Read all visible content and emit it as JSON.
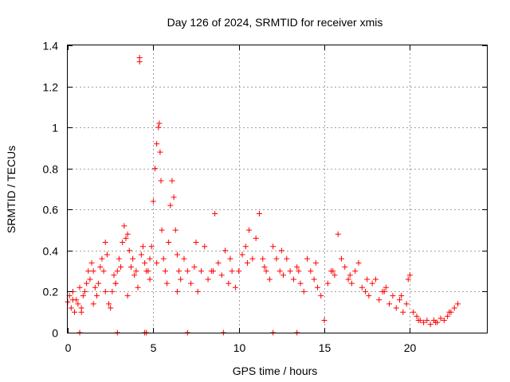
{
  "chart_data": {
    "type": "scatter",
    "title": "Day 126 of 2024, SRMTID for receiver xmis",
    "xlabel": "GPS time / hours",
    "ylabel": "SRMTID / TECUs",
    "xlim": [
      0,
      24.5
    ],
    "ylim": [
      0,
      1.4
    ],
    "x_ticks": [
      0,
      5,
      10,
      15,
      20
    ],
    "y_ticks": [
      0,
      0.2,
      0.4,
      0.6,
      0.8,
      1,
      1.2,
      1.4
    ],
    "x_tick_labels": [
      "0",
      "5",
      "10",
      "15",
      "20"
    ],
    "y_tick_labels": [
      "0",
      "0.2",
      "0.4",
      "0.6",
      "0.8",
      "1",
      "1.2",
      "1.4"
    ],
    "grid": true,
    "marker": "plus",
    "color": "#ff0000",
    "series": [
      {
        "name": "SRMTID",
        "x": [
          0.0,
          0.1,
          0.2,
          0.3,
          0.4,
          0.5,
          0.6,
          0.7,
          0.8,
          0.9,
          1.0,
          1.1,
          1.2,
          1.3,
          1.4,
          1.5,
          1.6,
          1.7,
          1.8,
          1.9,
          2.0,
          2.1,
          2.2,
          2.3,
          2.4,
          2.5,
          2.6,
          2.7,
          2.8,
          2.9,
          3.0,
          3.1,
          3.2,
          3.3,
          3.4,
          3.5,
          3.6,
          3.7,
          3.8,
          3.9,
          4.0,
          4.1,
          4.2,
          4.2,
          4.3,
          4.4,
          4.5,
          4.6,
          4.7,
          4.8,
          4.9,
          5.0,
          5.1,
          5.2,
          5.3,
          5.35,
          5.4,
          5.45,
          5.5,
          5.6,
          5.7,
          5.8,
          5.9,
          6.0,
          6.1,
          6.2,
          6.3,
          6.4,
          6.5,
          6.6,
          6.8,
          7.0,
          7.2,
          7.4,
          7.6,
          7.8,
          8.0,
          8.2,
          8.4,
          8.6,
          8.8,
          9.0,
          9.2,
          9.4,
          9.6,
          9.8,
          10.0,
          10.2,
          10.4,
          10.6,
          10.8,
          11.0,
          11.2,
          11.4,
          11.6,
          11.8,
          12.0,
          12.2,
          12.4,
          12.6,
          12.8,
          13.0,
          13.2,
          13.4,
          13.6,
          13.8,
          14.0,
          14.2,
          14.4,
          14.6,
          14.8,
          15.0,
          15.2,
          15.4,
          15.6,
          15.8,
          16.0,
          16.2,
          16.4,
          16.6,
          16.8,
          17.0,
          17.2,
          17.4,
          17.6,
          17.8,
          18.0,
          18.2,
          18.4,
          18.6,
          18.8,
          19.0,
          19.2,
          19.4,
          19.6,
          19.8,
          19.9,
          20.0,
          20.2,
          20.4,
          20.6,
          20.8,
          21.0,
          21.2,
          21.4,
          21.6,
          21.8,
          22.0,
          22.2,
          22.4,
          22.6,
          22.8,
          0.3,
          0.8,
          1.5,
          2.2,
          2.8,
          3.5,
          4.8,
          5.2,
          6.4,
          7.5,
          8.5,
          9.5,
          10.5,
          11.5,
          12.5,
          13.5,
          14.5,
          15.5,
          16.5,
          17.5,
          18.5,
          19.5,
          20.5,
          21.5,
          22.3,
          0.7,
          2.9,
          4.5,
          4.6,
          7.0,
          9.1,
          12.0,
          13.4
        ],
        "y": [
          0.15,
          0.18,
          0.12,
          0.2,
          0.1,
          0.16,
          0.14,
          0.22,
          0.12,
          0.18,
          0.2,
          0.24,
          0.3,
          0.26,
          0.34,
          0.3,
          0.22,
          0.18,
          0.24,
          0.32,
          0.36,
          0.3,
          0.44,
          0.38,
          0.14,
          0.12,
          0.2,
          0.28,
          0.24,
          0.3,
          0.36,
          0.32,
          0.44,
          0.52,
          0.46,
          0.48,
          0.4,
          0.32,
          0.36,
          0.28,
          0.3,
          0.22,
          1.32,
          1.34,
          0.38,
          0.42,
          0.34,
          0.3,
          0.3,
          0.36,
          0.42,
          0.64,
          0.8,
          0.92,
          1.0,
          1.02,
          0.88,
          0.74,
          0.5,
          0.36,
          0.3,
          0.24,
          0.44,
          0.62,
          0.74,
          0.66,
          0.5,
          0.38,
          0.3,
          0.26,
          0.36,
          0.3,
          0.24,
          0.32,
          0.2,
          0.3,
          0.42,
          0.26,
          0.3,
          0.58,
          0.34,
          0.28,
          0.4,
          0.24,
          0.3,
          0.22,
          0.3,
          0.38,
          0.42,
          0.5,
          0.36,
          0.46,
          0.58,
          0.36,
          0.3,
          0.26,
          0.42,
          0.36,
          0.3,
          0.28,
          0.36,
          0.3,
          0.26,
          0.32,
          0.24,
          0.2,
          0.36,
          0.3,
          0.26,
          0.22,
          0.18,
          0.06,
          0.24,
          0.3,
          0.28,
          0.48,
          0.36,
          0.32,
          0.26,
          0.24,
          0.3,
          0.34,
          0.22,
          0.2,
          0.18,
          0.24,
          0.26,
          0.16,
          0.2,
          0.22,
          0.14,
          0.18,
          0.12,
          0.16,
          0.1,
          0.14,
          0.26,
          0.28,
          0.1,
          0.08,
          0.06,
          0.05,
          0.06,
          0.04,
          0.06,
          0.05,
          0.07,
          0.06,
          0.08,
          0.1,
          0.12,
          0.14,
          0.16,
          0.1,
          0.14,
          0.2,
          0.24,
          0.18,
          0.26,
          0.34,
          0.2,
          0.44,
          0.3,
          0.36,
          0.34,
          0.32,
          0.4,
          0.3,
          0.34,
          0.3,
          0.28,
          0.26,
          0.2,
          0.18,
          0.06,
          0.05,
          0.1,
          0.0,
          0.0,
          0.0,
          0.0,
          0.0,
          0.0,
          0.0,
          0.0
        ]
      }
    ]
  }
}
